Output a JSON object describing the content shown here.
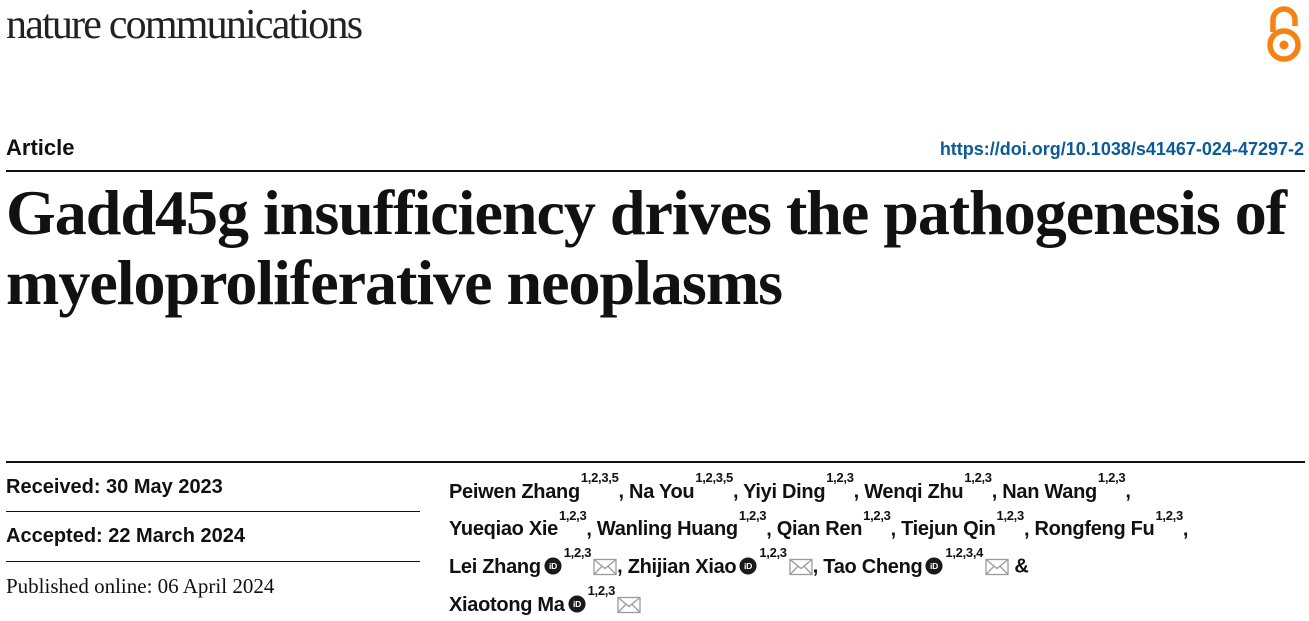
{
  "journal": {
    "name": "nature communications"
  },
  "article": {
    "type": "Article",
    "doi": "https://doi.org/10.1038/s41467-024-47297-2",
    "title": "Gadd45g insufficiency drives the pathogenesis of myeloproliferative neoplasms"
  },
  "dates": {
    "received": "Received: 30 May 2023",
    "accepted": "Accepted: 22 March 2024",
    "published": "Published online: 06 April 2024"
  },
  "authors": [
    {
      "name": "Peiwen Zhang",
      "aff": "1,2,3,5",
      "sep": ", "
    },
    {
      "name": "Na You",
      "aff": "1,2,3,5",
      "sep": ", "
    },
    {
      "name": "Yiyi Ding",
      "aff": "1,2,3",
      "sep": ", "
    },
    {
      "name": "Wenqi Zhu",
      "aff": "1,2,3",
      "sep": ", "
    },
    {
      "name": "Nan Wang",
      "aff": "1,2,3",
      "sep": ", "
    },
    {
      "name": "Yueqiao Xie",
      "aff": "1,2,3",
      "sep": ", "
    },
    {
      "name": "Wanling Huang",
      "aff": "1,2,3",
      "sep": ", "
    },
    {
      "name": "Qian Ren",
      "aff": "1,2,3",
      "sep": ", "
    },
    {
      "name": "Tiejun Qin",
      "aff": "1,2,3",
      "sep": ", "
    },
    {
      "name": "Rongfeng Fu",
      "aff": "1,2,3",
      "sep": ", "
    },
    {
      "name": "Lei Zhang",
      "aff": "1,2,3",
      "sep": ", "
    },
    {
      "name": "Zhijian Xiao",
      "aff": "1,2,3",
      "sep": ", "
    },
    {
      "name": "Tao Cheng",
      "aff": "1,2,3,4",
      "sep": " & "
    },
    {
      "name": "Xiaotong Ma",
      "aff": "1,2,3",
      "sep": ""
    }
  ],
  "colors": {
    "open_access": "#f68212",
    "doi_link": "#0b5a9a",
    "orcid": "#1a1a1a"
  }
}
